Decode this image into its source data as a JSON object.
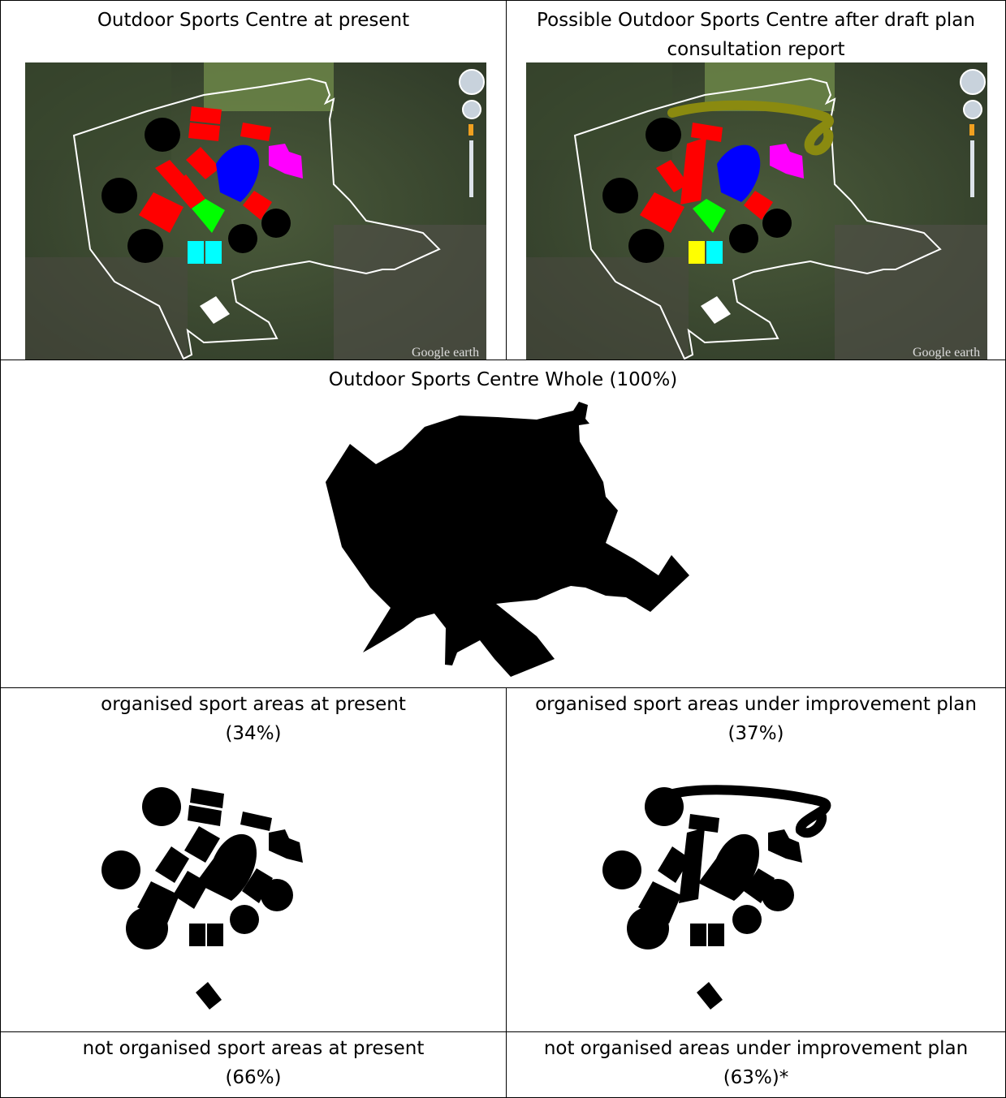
{
  "top_left": {
    "title": "Outdoor Sports Centre at present",
    "map_watermark": "Google earth"
  },
  "top_right": {
    "title_line1": "Possible Outdoor Sports Centre after draft plan",
    "title_line2": "consultation report",
    "map_watermark": "Google earth"
  },
  "whole": {
    "title": "Outdoor Sports Centre Whole (100%)"
  },
  "organised_present": {
    "title_line1": "organised sport areas at present",
    "title_line2": "(34%)"
  },
  "organised_plan": {
    "title_line1": "organised sport areas under improvement plan",
    "title_line2": "(37%)"
  },
  "not_organised_present": {
    "title_line1": "not organised sport areas at present",
    "title_line2": "(66%)"
  },
  "not_organised_plan": {
    "title_line1": "not organised areas under improvement plan",
    "title_line2": "(63%)*"
  },
  "colors": {
    "pitch_red": "#ff0000",
    "track_blue": "#0000ff",
    "field_green": "#00ff00",
    "courts_cyan": "#00ffff",
    "courts_yellow": "#ffff00",
    "area_magenta": "#ff00ff",
    "path_olive": "#8a8a10",
    "shape_black": "#000000"
  }
}
